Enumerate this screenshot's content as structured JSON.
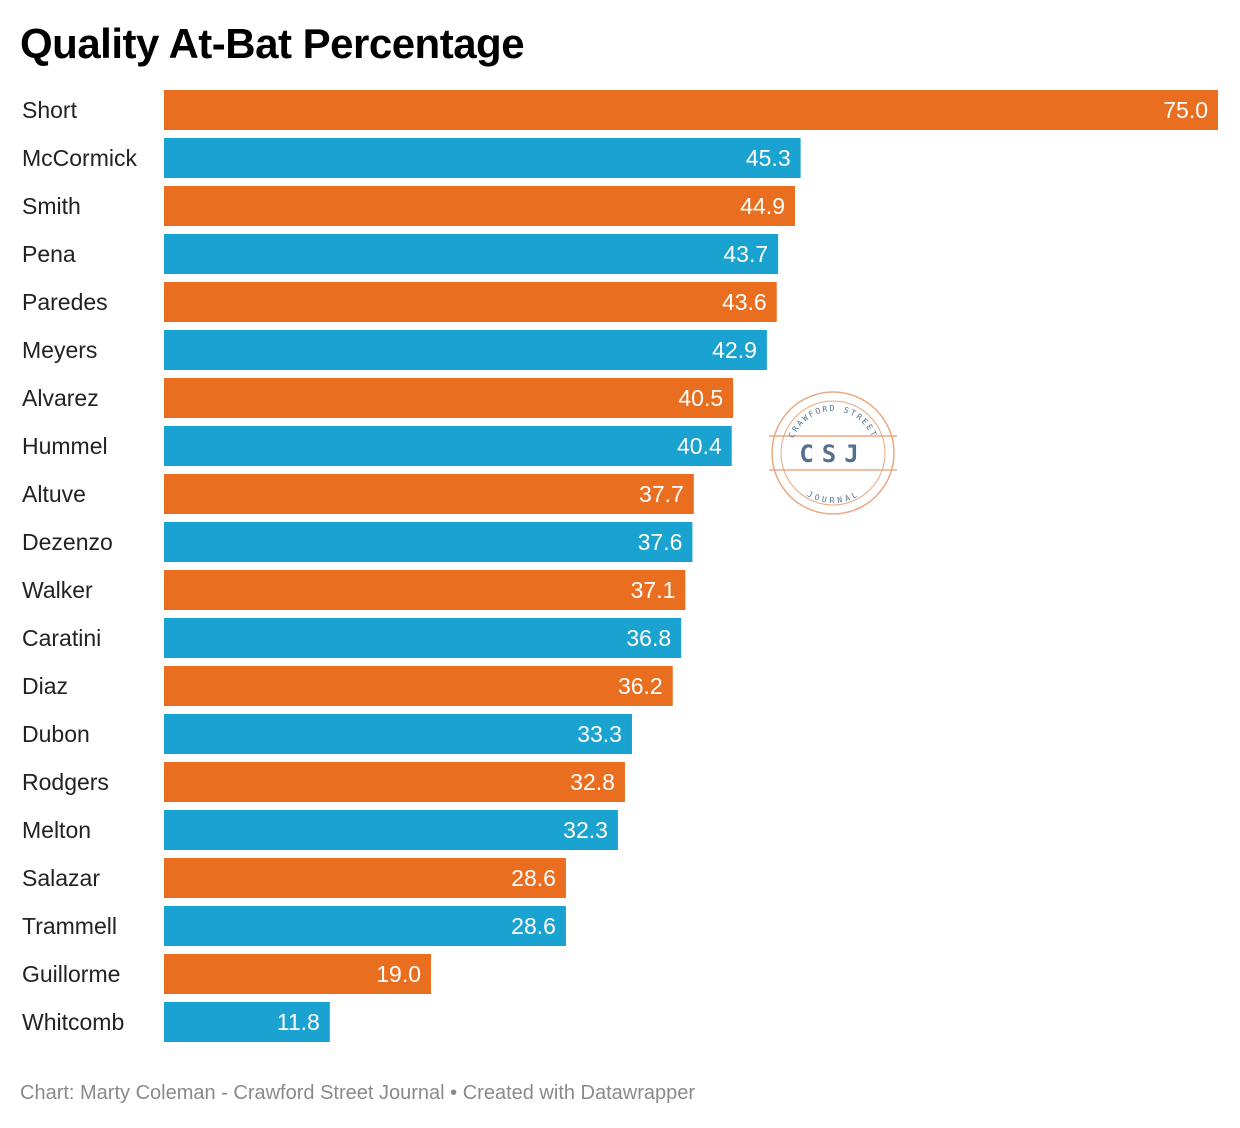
{
  "chart_data": {
    "type": "bar",
    "orientation": "horizontal",
    "title": "Quality At-Bat Percentage",
    "categories": [
      "Short",
      "McCormick",
      "Smith",
      "Pena",
      "Paredes",
      "Meyers",
      "Alvarez",
      "Hummel",
      "Altuve",
      "Dezenzo",
      "Walker",
      "Caratini",
      "Diaz",
      "Dubon",
      "Rodgers",
      "Melton",
      "Salazar",
      "Trammell",
      "Guillorme",
      "Whitcomb"
    ],
    "values": [
      75.0,
      45.3,
      44.9,
      43.7,
      43.6,
      42.9,
      40.5,
      40.4,
      37.7,
      37.6,
      37.1,
      36.8,
      36.2,
      33.3,
      32.8,
      32.3,
      28.6,
      28.6,
      19.0,
      11.8
    ],
    "xlim": [
      0,
      75
    ],
    "colors": [
      "#ea6e1f",
      "#1aa2d0"
    ],
    "color_pattern": "alternating",
    "value_format": "one decimal",
    "grid": false,
    "legend": "none"
  },
  "footer": {
    "source": "Chart: Marty Coleman - Crawford Street Journal",
    "separator": " • ",
    "credit": "Created with Datawrapper"
  },
  "watermark": {
    "initials": "CSJ",
    "top_text": "CRAWFORD STREET",
    "bottom_text": "JOURNAL",
    "color": "#e8a47a",
    "text_color": "#4a6a8a"
  }
}
